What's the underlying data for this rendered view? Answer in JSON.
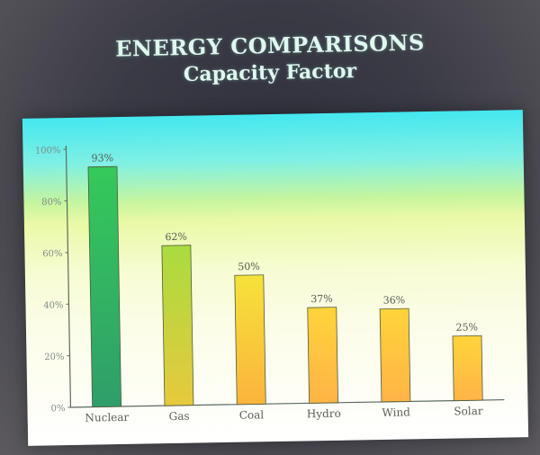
{
  "title": "ENERGY COMPARISONS",
  "subtitle": "Capacity Factor",
  "chart_data": {
    "type": "bar",
    "title": "ENERGY COMPARISONS",
    "subtitle": "Capacity Factor",
    "categories": [
      "Nuclear",
      "Gas",
      "Coal",
      "Hydro",
      "Wind",
      "Solar"
    ],
    "values": [
      93,
      62,
      50,
      37,
      36,
      25
    ],
    "value_labels": [
      "93%",
      "62%",
      "50%",
      "37%",
      "36%",
      "25%"
    ],
    "ylim": [
      0,
      100
    ],
    "yticks": [
      0,
      20,
      40,
      60,
      80,
      100
    ],
    "ytick_labels": [
      "0%",
      "20%",
      "40%",
      "60%",
      "80%",
      "100%"
    ],
    "xlabel": "",
    "ylabel": "",
    "grid": false,
    "bar_colors": [
      [
        "#35c95a",
        "#2f9e6a"
      ],
      [
        "#a9dc3f",
        "#e7c93d"
      ],
      [
        "#f6e23a",
        "#fbb43c"
      ],
      [
        "#ffd43a",
        "#ffb447"
      ],
      [
        "#ffd43a",
        "#ffb447"
      ],
      [
        "#ffd43a",
        "#ffb447"
      ]
    ]
  }
}
